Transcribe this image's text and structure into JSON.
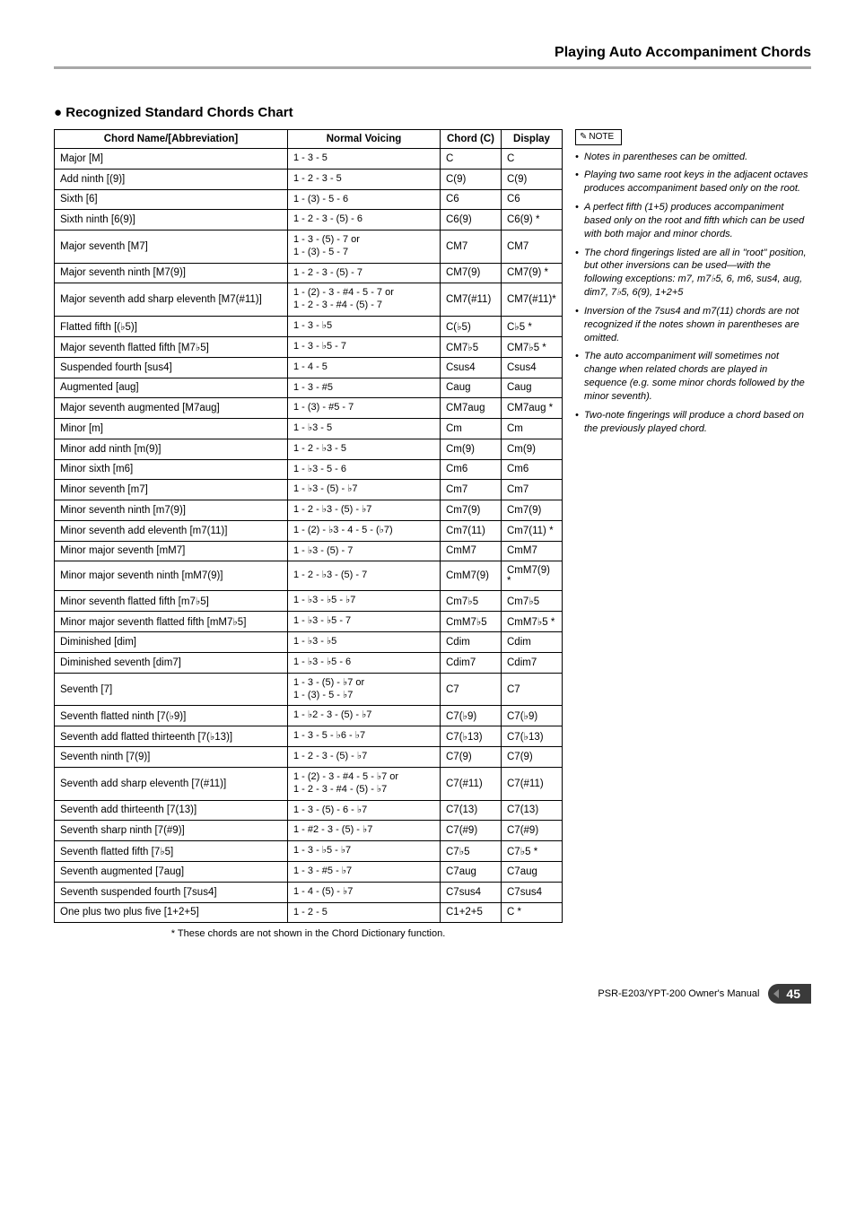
{
  "header": {
    "title": "Playing Auto Accompaniment Chords"
  },
  "section": {
    "title": "Recognized Standard Chords Chart"
  },
  "table": {
    "headers": {
      "name": "Chord Name/[Abbreviation]",
      "voicing": "Normal Voicing",
      "chord": "Chord (C)",
      "display": "Display"
    },
    "rows": [
      {
        "name": "Major [M]",
        "voicing": "1 - 3 - 5",
        "chord": "C",
        "display": "C"
      },
      {
        "name": "Add ninth [(9)]",
        "voicing": "1 - 2 - 3 - 5",
        "chord": "C(9)",
        "display": "C(9)"
      },
      {
        "name": "Sixth [6]",
        "voicing": "1 - (3) - 5 - 6",
        "chord": "C6",
        "display": "C6"
      },
      {
        "name": "Sixth ninth [6(9)]",
        "voicing": "1 - 2 - 3 - (5) - 6",
        "chord": "C6(9)",
        "display": "C6(9) *"
      },
      {
        "name": "Major seventh [M7]",
        "voicing": "1 - 3 - (5) - 7 or\n1 - (3) - 5 - 7",
        "chord": "CM7",
        "display": "CM7"
      },
      {
        "name": "Major seventh ninth [M7(9)]",
        "voicing": "1 - 2 - 3 - (5) - 7",
        "chord": "CM7(9)",
        "display": "CM7(9) *"
      },
      {
        "name": "Major seventh add sharp eleventh [M7(#11)]",
        "voicing": "1 - (2) - 3 - #4 - 5 - 7 or\n1 - 2 - 3 - #4 - (5) - 7",
        "chord": "CM7(#11)",
        "display": "CM7(#11)*"
      },
      {
        "name": "Flatted fifth [(♭5)]",
        "voicing": "1 - 3 - ♭5",
        "chord": "C(♭5)",
        "display": "C♭5 *"
      },
      {
        "name": "Major seventh flatted fifth [M7♭5]",
        "voicing": "1 - 3 - ♭5 - 7",
        "chord": "CM7♭5",
        "display": "CM7♭5 *"
      },
      {
        "name": "Suspended fourth [sus4]",
        "voicing": "1 - 4 - 5",
        "chord": "Csus4",
        "display": "Csus4"
      },
      {
        "name": "Augmented [aug]",
        "voicing": "1 - 3 - #5",
        "chord": "Caug",
        "display": "Caug"
      },
      {
        "name": "Major seventh augmented [M7aug]",
        "voicing": "1 - (3) - #5 - 7",
        "chord": "CM7aug",
        "display": "CM7aug *"
      },
      {
        "name": "Minor [m]",
        "voicing": "1 - ♭3 - 5",
        "chord": "Cm",
        "display": "Cm"
      },
      {
        "name": "Minor add ninth [m(9)]",
        "voicing": "1 - 2 - ♭3 - 5",
        "chord": "Cm(9)",
        "display": "Cm(9)"
      },
      {
        "name": "Minor sixth [m6]",
        "voicing": "1 - ♭3 - 5 - 6",
        "chord": "Cm6",
        "display": "Cm6"
      },
      {
        "name": "Minor seventh [m7]",
        "voicing": "1 - ♭3 - (5) - ♭7",
        "chord": "Cm7",
        "display": "Cm7"
      },
      {
        "name": "Minor seventh ninth [m7(9)]",
        "voicing": "1 - 2 - ♭3 - (5) - ♭7",
        "chord": "Cm7(9)",
        "display": "Cm7(9)"
      },
      {
        "name": "Minor seventh add eleventh [m7(11)]",
        "voicing": "1 - (2) - ♭3 - 4 - 5 - (♭7)",
        "chord": "Cm7(11)",
        "display": "Cm7(11) *"
      },
      {
        "name": "Minor major seventh [mM7]",
        "voicing": "1 - ♭3 - (5) - 7",
        "chord": "CmM7",
        "display": "CmM7"
      },
      {
        "name": "Minor major seventh ninth [mM7(9)]",
        "voicing": "1 - 2 - ♭3 - (5) - 7",
        "chord": "CmM7(9)",
        "display": "CmM7(9) *"
      },
      {
        "name": "Minor seventh flatted fifth [m7♭5]",
        "voicing": "1 - ♭3 - ♭5 - ♭7",
        "chord": "Cm7♭5",
        "display": "Cm7♭5"
      },
      {
        "name": "Minor major seventh flatted fifth [mM7♭5]",
        "voicing": "1 - ♭3 - ♭5 - 7",
        "chord": "CmM7♭5",
        "display": "CmM7♭5 *"
      },
      {
        "name": "Diminished [dim]",
        "voicing": "1 - ♭3 - ♭5",
        "chord": "Cdim",
        "display": "Cdim"
      },
      {
        "name": "Diminished seventh [dim7]",
        "voicing": "1 - ♭3 - ♭5 - 6",
        "chord": "Cdim7",
        "display": "Cdim7"
      },
      {
        "name": "Seventh [7]",
        "voicing": "1 - 3 - (5) - ♭7 or\n1 - (3) - 5 - ♭7",
        "chord": "C7",
        "display": "C7"
      },
      {
        "name": "Seventh flatted ninth [7(♭9)]",
        "voicing": "1 - ♭2 - 3 - (5) - ♭7",
        "chord": "C7(♭9)",
        "display": "C7(♭9)"
      },
      {
        "name": "Seventh add flatted thirteenth [7(♭13)]",
        "voicing": "1 - 3 - 5 - ♭6 - ♭7",
        "chord": "C7(♭13)",
        "display": "C7(♭13)"
      },
      {
        "name": "Seventh ninth [7(9)]",
        "voicing": "1 - 2 - 3 - (5) - ♭7",
        "chord": "C7(9)",
        "display": "C7(9)"
      },
      {
        "name": "Seventh add sharp eleventh [7(#11)]",
        "voicing": "1 - (2) - 3 - #4 - 5 - ♭7 or\n1 - 2 - 3 - #4 - (5) - ♭7",
        "chord": "C7(#11)",
        "display": "C7(#11)"
      },
      {
        "name": "Seventh add thirteenth [7(13)]",
        "voicing": "1 - 3 - (5) - 6 - ♭7",
        "chord": "C7(13)",
        "display": "C7(13)"
      },
      {
        "name": "Seventh sharp ninth [7(#9)]",
        "voicing": "1 - #2 - 3 - (5) - ♭7",
        "chord": "C7(#9)",
        "display": "C7(#9)"
      },
      {
        "name": "Seventh flatted fifth [7♭5]",
        "voicing": "1 - 3 - ♭5 - ♭7",
        "chord": "C7♭5",
        "display": "C7♭5 *"
      },
      {
        "name": "Seventh augmented [7aug]",
        "voicing": "1 - 3 - #5 - ♭7",
        "chord": "C7aug",
        "display": "C7aug"
      },
      {
        "name": "Seventh suspended fourth [7sus4]",
        "voicing": "1 - 4 - (5) - ♭7",
        "chord": "C7sus4",
        "display": "C7sus4"
      },
      {
        "name": "One plus two plus five [1+2+5]",
        "voicing": "1 - 2 - 5",
        "chord": "C1+2+5",
        "display": "C *"
      }
    ],
    "footnote": "* These chords are not shown in the Chord Dictionary function."
  },
  "note": {
    "label": "NOTE",
    "items": [
      "Notes in parentheses can be omitted.",
      "Playing two same root keys in the adjacent octaves produces accompaniment based only on the root.",
      "A perfect fifth (1+5) produces accompaniment based only on the root and fifth which can be used with both major and minor chords.",
      "The chord fingerings listed are all in \"root\" position, but other inversions can be used—with the following exceptions: m7, m7♭5, 6, m6, sus4, aug, dim7, 7♭5, 6(9), 1+2+5",
      "Inversion of the 7sus4 and m7(11) chords are not recognized if the notes shown in parentheses are omitted.",
      "The auto accompaniment will sometimes not change when related chords are played in sequence (e.g. some minor chords followed by the minor seventh).",
      "Two-note fingerings will produce a chord based on the previously played chord."
    ]
  },
  "footer": {
    "manual": "PSR-E203/YPT-200   Owner's Manual",
    "page": "45"
  }
}
